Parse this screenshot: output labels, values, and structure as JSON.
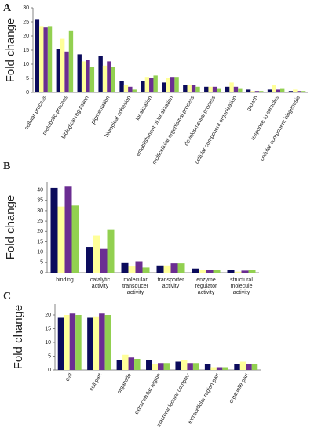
{
  "chart_data": [
    {
      "type": "bar",
      "label": "A",
      "y_label": "Fold change",
      "categories": [
        "cellular process",
        "metabolic process",
        "biological regulation",
        "pigmentation",
        "biological adhesion",
        "localization",
        "establishment of localization",
        "multicellular organismal process",
        "developmental process",
        "cellular component organization",
        "growth",
        "response to stimulus",
        "cellular component biogenesis"
      ],
      "series": [
        {
          "color": "#0b0b5c",
          "values": [
            26,
            15.5,
            13.5,
            13,
            4,
            4,
            3.5,
            2.5,
            2,
            2,
            1,
            1,
            0.5
          ]
        },
        {
          "color": "#ffff99",
          "values": [
            23.5,
            19,
            11,
            9.5,
            2.5,
            5.5,
            5,
            2.5,
            2,
            3.5,
            0.5,
            2.5,
            1
          ]
        },
        {
          "color": "#6b2d92",
          "values": [
            23,
            14.5,
            11.5,
            11,
            2,
            5,
            5.5,
            2.5,
            2,
            2,
            0.5,
            1,
            0.5
          ]
        },
        {
          "color": "#92d050",
          "values": [
            23.5,
            22,
            9,
            9,
            1,
            6,
            5.5,
            2,
            1.5,
            1.5,
            0.5,
            1.5,
            0.5
          ]
        }
      ],
      "ylim": [
        0,
        30
      ],
      "yticks": [
        0,
        5,
        10,
        15,
        20,
        25,
        30
      ]
    },
    {
      "type": "bar",
      "label": "B",
      "y_label": "Fold change",
      "categories": [
        "binding",
        "catalytic activity",
        "molecular transducer activity",
        "transporter activity",
        "enzyme regulator activity",
        "structural molecule activity"
      ],
      "series": [
        {
          "color": "#0b0b5c",
          "values": [
            41,
            12.5,
            5,
            3.5,
            2,
            1.5
          ]
        },
        {
          "color": "#ffff99",
          "values": [
            32,
            18,
            3,
            3.5,
            1.5,
            0.5
          ]
        },
        {
          "color": "#6b2d92",
          "values": [
            42,
            11.5,
            5.5,
            4.5,
            1.5,
            1
          ]
        },
        {
          "color": "#92d050",
          "values": [
            32.5,
            21,
            2.5,
            4.5,
            1.5,
            1.5
          ]
        }
      ],
      "ylim": [
        0,
        44
      ],
      "yticks": [
        0,
        5,
        10,
        15,
        20,
        25,
        30,
        35,
        40
      ]
    },
    {
      "type": "bar",
      "label": "C",
      "y_label": "Fold change",
      "categories": [
        "cell",
        "cell part",
        "organelle",
        "extracellular region",
        "macromolecular complex",
        "extracellular region part",
        "organelle part"
      ],
      "series": [
        {
          "color": "#0b0b5c",
          "values": [
            19,
            19,
            3.5,
            3.5,
            3,
            2,
            2
          ]
        },
        {
          "color": "#ffff99",
          "values": [
            20,
            19.5,
            5.5,
            2,
            3.5,
            1,
            3
          ]
        },
        {
          "color": "#6b2d92",
          "values": [
            20.5,
            20.5,
            4.5,
            2.5,
            2.5,
            1,
            2
          ]
        },
        {
          "color": "#92d050",
          "values": [
            20,
            20,
            4,
            2.5,
            2.5,
            1,
            2
          ]
        }
      ],
      "ylim": [
        0,
        24
      ],
      "yticks": [
        0,
        5,
        10,
        15,
        20
      ]
    }
  ]
}
